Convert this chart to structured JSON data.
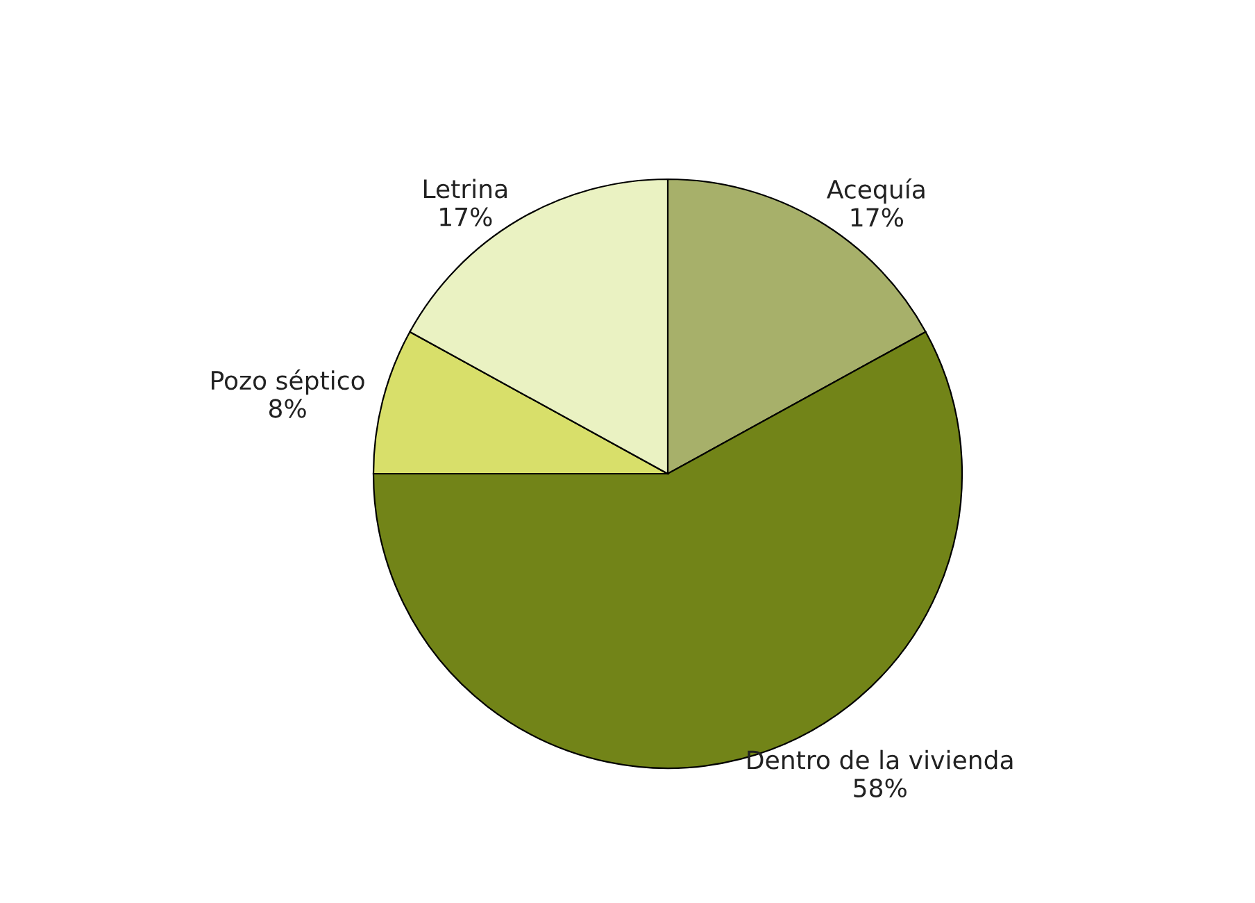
{
  "chart_data": {
    "type": "pie",
    "categories": [
      "Acequía",
      "Dentro de la vivienda",
      "Pozo séptico",
      "Letrina"
    ],
    "values": [
      17,
      58,
      8,
      17
    ],
    "value_labels": [
      "17%",
      "58%",
      "8%",
      "17%"
    ],
    "colors": [
      "#a7b06a",
      "#728418",
      "#d8df6a",
      "#eaf2c2"
    ],
    "legend": false
  }
}
